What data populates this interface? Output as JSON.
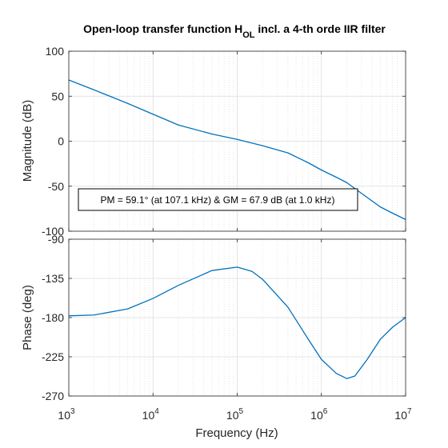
{
  "chart_data": {
    "type": "line",
    "title": {
      "main": "Open-loop transfer function H",
      "subscript": "OL",
      "suffix": " incl. a 4-th orde IIR filter"
    },
    "x": {
      "label": "Frequency  (Hz)",
      "scale": "log",
      "range": [
        1000,
        10000000
      ],
      "tick_values": [
        1000,
        10000,
        100000,
        1000000,
        10000000
      ],
      "tick_labels": [
        [
          "10",
          "3"
        ],
        [
          "10",
          "4"
        ],
        [
          "10",
          "5"
        ],
        [
          "10",
          "6"
        ],
        [
          "10",
          "7"
        ]
      ]
    },
    "magnitude": {
      "ylabel": "Magnitude (dB)",
      "ylim": [
        -100,
        100
      ],
      "yticks": [
        -100,
        -50,
        0,
        50,
        100
      ],
      "ytick_labels": [
        "-100",
        "-50",
        "0",
        "50",
        "100"
      ],
      "series": {
        "color": "#0072BD",
        "points": [
          [
            1000,
            68
          ],
          [
            2000,
            57
          ],
          [
            5000,
            42
          ],
          [
            10000,
            30
          ],
          [
            20000,
            18
          ],
          [
            50000,
            8
          ],
          [
            100000,
            2
          ],
          [
            200000,
            -5
          ],
          [
            400000,
            -13
          ],
          [
            700000,
            -24
          ],
          [
            1000000,
            -32
          ],
          [
            1500000,
            -40
          ],
          [
            2000000,
            -46
          ],
          [
            3000000,
            -58
          ],
          [
            5000000,
            -73
          ],
          [
            7000000,
            -80
          ],
          [
            10000000,
            -87
          ]
        ]
      },
      "annotation": "PM = 59.1° (at 107.1 kHz) & GM = 67.9 dB (at 1.0 kHz)"
    },
    "phase": {
      "ylabel": "Phase (deg)",
      "ylim": [
        -270,
        -90
      ],
      "yticks": [
        -270,
        -225,
        -180,
        -135,
        -90
      ],
      "ytick_labels": [
        "-270",
        "-225",
        "-180",
        "-135",
        "-90"
      ],
      "series": {
        "color": "#0072BD",
        "points": [
          [
            1000,
            -178
          ],
          [
            2000,
            -177
          ],
          [
            5000,
            -170
          ],
          [
            10000,
            -158
          ],
          [
            20000,
            -143
          ],
          [
            50000,
            -126
          ],
          [
            100000,
            -122
          ],
          [
            150000,
            -127
          ],
          [
            200000,
            -136
          ],
          [
            400000,
            -168
          ],
          [
            700000,
            -205
          ],
          [
            1000000,
            -228
          ],
          [
            1500000,
            -244
          ],
          [
            2000000,
            -250
          ],
          [
            2500000,
            -247
          ],
          [
            3500000,
            -228
          ],
          [
            5000000,
            -205
          ],
          [
            7000000,
            -191
          ],
          [
            10000000,
            -180
          ]
        ]
      }
    },
    "grid": true,
    "minor_grid": true
  }
}
